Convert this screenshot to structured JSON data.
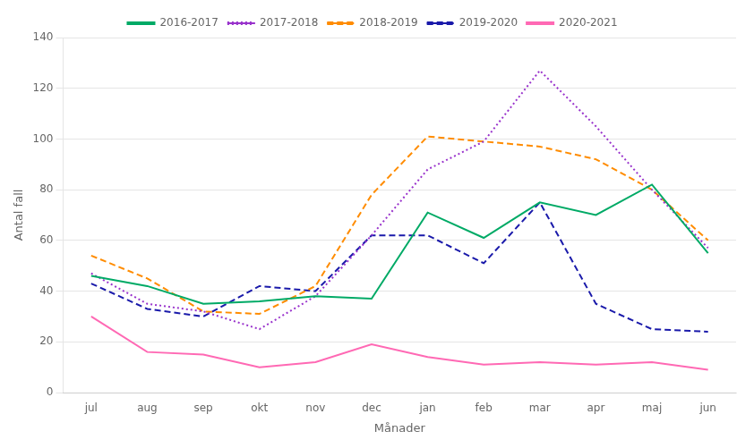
{
  "chart_data": {
    "type": "line",
    "xlabel": "Månader",
    "ylabel": "Antal fall",
    "categories": [
      "jul",
      "aug",
      "sep",
      "okt",
      "nov",
      "dec",
      "jan",
      "feb",
      "mar",
      "apr",
      "maj",
      "jun"
    ],
    "series": [
      {
        "name": "2016-2017",
        "color": "#00aa66",
        "line_style": "solid",
        "values": [
          46,
          42,
          35,
          36,
          38,
          37,
          71,
          61,
          75,
          70,
          82,
          55
        ]
      },
      {
        "name": "2017-2018",
        "color": "#9933cc",
        "line_style": "dotted",
        "values": [
          47,
          35,
          32,
          25,
          38,
          62,
          88,
          99,
          127,
          105,
          80,
          57
        ]
      },
      {
        "name": "2018-2019",
        "color": "#ff8c00",
        "line_style": "dashed",
        "values": [
          54,
          45,
          32,
          31,
          42,
          78,
          101,
          99,
          97,
          92,
          80,
          60
        ]
      },
      {
        "name": "2019-2020",
        "color": "#1a1aaa",
        "line_style": "dashed",
        "values": [
          43,
          33,
          30,
          42,
          40,
          62,
          62,
          51,
          75,
          35,
          25,
          24
        ]
      },
      {
        "name": "2020-2021",
        "color": "#ff69b4",
        "line_style": "solid",
        "values": [
          30,
          16,
          15,
          10,
          12,
          19,
          14,
          11,
          12,
          11,
          12,
          9
        ]
      }
    ],
    "ylim": [
      0,
      140
    ],
    "yticks": [
      0,
      20,
      40,
      60,
      80,
      100,
      120,
      140
    ],
    "grid": "y",
    "legend": "top"
  }
}
